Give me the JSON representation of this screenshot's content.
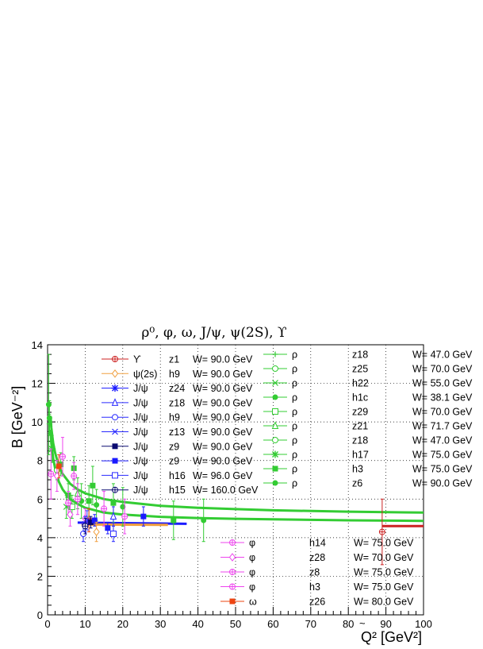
{
  "chart_data": {
    "type": "scatter",
    "title": "ρ⁰, φ, ω, J/ψ, ψ(2S), ϒ",
    "xlabel": "Q²  [GeV²]",
    "ylabel": "B [GeV⁻²]",
    "xlim": [
      0,
      100
    ],
    "ylim": [
      0,
      14
    ],
    "grid": true,
    "x_ticks": [
      "0",
      "10",
      "20",
      "30",
      "40",
      "50",
      "60",
      "70",
      "80",
      "90",
      "100"
    ],
    "y_ticks": [
      "0",
      "2",
      "4",
      "6",
      "8",
      "10",
      "12",
      "14"
    ],
    "x_tick_values": [
      0,
      10,
      20,
      30,
      40,
      50,
      60,
      70,
      80,
      90,
      100
    ],
    "y_tick_values": [
      0,
      2,
      4,
      6,
      8,
      10,
      12,
      14
    ],
    "stray_annotation": "~",
    "legends": [
      {
        "position": "upper-left",
        "entries": [
          {
            "particle": "ϒ",
            "label": "z1",
            "w": "W=  90.0 GeV",
            "color": "#cc2222",
            "marker": "open-circle-cross"
          },
          {
            "particle": "ψ(2s)",
            "label": "h9",
            "w": "W=  90.0 GeV",
            "color": "#f0a040",
            "marker": "open-diamond"
          },
          {
            "particle": "J/ψ",
            "label": "z24",
            "w": "W=  90.0 GeV",
            "color": "#1a1aff",
            "marker": "star"
          },
          {
            "particle": "J/ψ",
            "label": "z18",
            "w": "W=  90.0 GeV",
            "color": "#2a2aff",
            "marker": "open-triangle"
          },
          {
            "particle": "J/ψ",
            "label": "h9",
            "w": "W=  90.0 GeV",
            "color": "#2a2aff",
            "marker": "open-circle"
          },
          {
            "particle": "J/ψ",
            "label": "z13",
            "w": "W=  90.0 GeV",
            "color": "#2a2aff",
            "marker": "x-cross"
          },
          {
            "particle": "J/ψ",
            "label": "z9",
            "w": "W=  90.0 GeV",
            "color": "#0a0a70",
            "marker": "filled-square"
          },
          {
            "particle": "J/ψ",
            "label": "z9",
            "w": "W=  90.0 GeV",
            "color": "#1a1aff",
            "marker": "filled-square"
          },
          {
            "particle": "J/ψ",
            "label": "h16",
            "w": "W=  96.0 GeV",
            "color": "#2a2aff",
            "marker": "open-square"
          },
          {
            "particle": "J/ψ",
            "label": "h15",
            "w": "W= 160.0 GeV",
            "color": "#0a0a70",
            "marker": "open-circle-cross"
          }
        ]
      },
      {
        "position": "upper-right",
        "entries": [
          {
            "particle": "ρ",
            "label": "z18",
            "w": "W=  47.0 GeV",
            "color": "#33cc33",
            "marker": "plus"
          },
          {
            "particle": "ρ",
            "label": "z25",
            "w": "W=  70.0 GeV",
            "color": "#33cc33",
            "marker": "open-circle"
          },
          {
            "particle": "ρ",
            "label": "h22",
            "w": "W=  55.0 GeV",
            "color": "#33cc33",
            "marker": "x-cross"
          },
          {
            "particle": "ρ",
            "label": "h1c",
            "w": "W=  38.1 GeV",
            "color": "#33cc33",
            "marker": "filled-circle"
          },
          {
            "particle": "ρ",
            "label": "z29",
            "w": "W=  70.0 GeV",
            "color": "#33cc33",
            "marker": "open-square"
          },
          {
            "particle": "ρ",
            "label": "z21",
            "w": "W=  71.7 GeV",
            "color": "#33cc33",
            "marker": "open-triangle"
          },
          {
            "particle": "ρ",
            "label": "z18",
            "w": "W=  47.0 GeV",
            "color": "#33cc33",
            "marker": "open-circle"
          },
          {
            "particle": "ρ",
            "label": "h17",
            "w": "W=  75.0 GeV",
            "color": "#33cc33",
            "marker": "star"
          },
          {
            "particle": "ρ",
            "label": "h3",
            "w": "W=  75.0 GeV",
            "color": "#33cc33",
            "marker": "filled-square"
          },
          {
            "particle": "ρ",
            "label": "z6",
            "w": "W=  90.0 GeV",
            "color": "#33cc33",
            "marker": "filled-circle"
          }
        ]
      },
      {
        "position": "lower-center",
        "entries": [
          {
            "particle": "φ",
            "label": "h14",
            "w": "W=  75.0 GeV",
            "color": "#ee44ee",
            "marker": "open-circle-cross"
          },
          {
            "particle": "φ",
            "label": "z28",
            "w": "W=  70.0 GeV",
            "color": "#ee44ee",
            "marker": "open-diamond"
          },
          {
            "particle": "φ",
            "label": "z8",
            "w": "W=  75.0 GeV",
            "color": "#ee44ee",
            "marker": "open-circle-cross"
          },
          {
            "particle": "φ",
            "label": "h3",
            "w": "W=  75.0 GeV",
            "color": "#ee44ee",
            "marker": "open-circle-cross"
          },
          {
            "particle": "ω",
            "label": "z26",
            "w": "W=  80.0 GeV",
            "color": "#ee4411",
            "marker": "filled-square"
          }
        ]
      }
    ],
    "fit_curves": [
      {
        "name": "rho-fit-upper",
        "color": "#33cc33",
        "x": [
          0.8,
          1,
          1.5,
          2,
          3,
          4,
          6,
          8,
          10,
          15,
          20,
          30,
          40,
          50,
          60,
          80,
          100
        ],
        "y": [
          10.3,
          9.7,
          8.9,
          8.4,
          7.7,
          7.3,
          6.8,
          6.5,
          6.3,
          6.0,
          5.85,
          5.65,
          5.55,
          5.48,
          5.42,
          5.35,
          5.3
        ]
      },
      {
        "name": "rho-fit-lower",
        "color": "#33cc33",
        "x": [
          0.8,
          1,
          1.5,
          2,
          3,
          4,
          6,
          8,
          10,
          15,
          20,
          30,
          40,
          50,
          60,
          80,
          100
        ],
        "y": [
          9.6,
          8.9,
          8.1,
          7.6,
          6.9,
          6.5,
          6.0,
          5.75,
          5.55,
          5.3,
          5.2,
          5.08,
          5.02,
          4.98,
          4.95,
          4.9,
          4.87
        ]
      },
      {
        "name": "jpsi-fit",
        "color": "#1a1aff",
        "x": [
          8,
          37
        ],
        "y": [
          4.78,
          4.72
        ]
      },
      {
        "name": "psi2s-fit",
        "color": "#f0a040",
        "x": [
          9,
          32
        ],
        "y": [
          4.68,
          4.66
        ]
      },
      {
        "name": "upsilon-fit",
        "color": "#cc2222",
        "x": [
          89,
          100
        ],
        "y": [
          4.6,
          4.6
        ]
      }
    ],
    "points": [
      {
        "series": "rho z6",
        "color": "#33cc33",
        "marker": "filled-circle",
        "x": 0.3,
        "y": 10.9,
        "err": 2.6
      },
      {
        "series": "rho h1c",
        "color": "#33cc33",
        "marker": "filled-circle",
        "x": 0.5,
        "y": 10.2,
        "err": 0.9
      },
      {
        "series": "rho z18",
        "color": "#33cc33",
        "marker": "plus",
        "x": 0.5,
        "y": 9.9,
        "err": 0.5
      },
      {
        "series": "rho h17",
        "color": "#33cc33",
        "marker": "star",
        "x": 1.2,
        "y": 8.6,
        "err": 0.7
      },
      {
        "series": "rho z25",
        "color": "#33cc33",
        "marker": "open-circle",
        "x": 2.5,
        "y": 7.5,
        "err": 0.5
      },
      {
        "series": "rho h3",
        "color": "#33cc33",
        "marker": "filled-square",
        "x": 3.5,
        "y": 7.8,
        "err": 0.6
      },
      {
        "series": "rho h22",
        "color": "#33cc33",
        "marker": "x-cross",
        "x": 5,
        "y": 5.6,
        "err": 0.6
      },
      {
        "series": "rho h3",
        "color": "#33cc33",
        "marker": "filled-square",
        "x": 5.5,
        "y": 6.2,
        "err": 0.6
      },
      {
        "series": "rho z29",
        "color": "#33cc33",
        "marker": "open-square",
        "x": 6.5,
        "y": 5.6,
        "err": 0.6
      },
      {
        "series": "rho h3",
        "color": "#33cc33",
        "marker": "filled-square",
        "x": 7,
        "y": 7.6,
        "err": 0.6
      },
      {
        "series": "rho z21",
        "color": "#33cc33",
        "marker": "open-triangle",
        "x": 8,
        "y": 6.3,
        "err": 0.8
      },
      {
        "series": "rho h1c",
        "color": "#33cc33",
        "marker": "filled-circle",
        "x": 9,
        "y": 5.9,
        "err": 0.9
      },
      {
        "series": "rho h3",
        "color": "#33cc33",
        "marker": "filled-square",
        "x": 11,
        "y": 5.9,
        "err": 0.8
      },
      {
        "series": "rho h3",
        "color": "#33cc33",
        "marker": "filled-square",
        "x": 12,
        "y": 6.7,
        "err": 1.0
      },
      {
        "series": "rho z6",
        "color": "#33cc33",
        "marker": "filled-circle",
        "x": 13,
        "y": 5.7,
        "err": 0.8
      },
      {
        "series": "rho h3",
        "color": "#33cc33",
        "marker": "filled-square",
        "x": 17.5,
        "y": 5.8,
        "err": 1.0
      },
      {
        "series": "rho z6",
        "color": "#33cc33",
        "marker": "filled-circle",
        "x": 20,
        "y": 5.6,
        "err": 1.0
      },
      {
        "series": "rho h3",
        "color": "#33cc33",
        "marker": "filled-square",
        "x": 33.5,
        "y": 4.9,
        "err": 1.0
      },
      {
        "series": "rho z6",
        "color": "#33cc33",
        "marker": "filled-circle",
        "x": 41.5,
        "y": 4.9,
        "err": 1.1
      },
      {
        "series": "phi h14",
        "color": "#ee44ee",
        "marker": "open-circle-cross",
        "x": 0.9,
        "y": 7.3,
        "err": 1.3
      },
      {
        "series": "phi z28",
        "color": "#ee44ee",
        "marker": "open-diamond",
        "x": 2.5,
        "y": 7.2,
        "err": 0.8
      },
      {
        "series": "phi z8",
        "color": "#ee44ee",
        "marker": "open-circle-cross",
        "x": 4,
        "y": 8.2,
        "err": 1.0
      },
      {
        "series": "phi h3",
        "color": "#ee44ee",
        "marker": "open-circle-cross",
        "x": 5.5,
        "y": 5.8,
        "err": 0.6
      },
      {
        "series": "phi z28",
        "color": "#ee44ee",
        "marker": "open-diamond",
        "x": 6,
        "y": 5.2,
        "err": 0.6
      },
      {
        "series": "phi h3",
        "color": "#ee44ee",
        "marker": "open-circle-cross",
        "x": 7,
        "y": 7.2,
        "err": 0.7
      },
      {
        "series": "phi z8",
        "color": "#ee44ee",
        "marker": "open-circle-cross",
        "x": 8,
        "y": 6.0,
        "err": 0.8
      },
      {
        "series": "phi z28",
        "color": "#ee44ee",
        "marker": "open-diamond",
        "x": 10,
        "y": 5.0,
        "err": 0.5
      },
      {
        "series": "phi h3",
        "color": "#ee44ee",
        "marker": "open-circle-cross",
        "x": 15,
        "y": 5.5,
        "err": 0.9
      },
      {
        "series": "phi z8",
        "color": "#ee44ee",
        "marker": "open-circle-cross",
        "x": 20.5,
        "y": 5.1,
        "err": 0.9
      },
      {
        "series": "omega z26",
        "color": "#ee4411",
        "marker": "filled-square",
        "x": 3,
        "y": 7.7,
        "err": 0.6
      },
      {
        "series": "omega z26",
        "color": "#ee4411",
        "marker": "filled-square",
        "x": 11,
        "y": 4.9,
        "err": 0.6
      },
      {
        "series": "J/psi h9",
        "color": "#2a2aff",
        "marker": "open-circle",
        "x": 9.5,
        "y": 4.2,
        "err": 0.4
      },
      {
        "series": "J/psi z24",
        "color": "#1a1aff",
        "marker": "star",
        "x": 10,
        "y": 4.7,
        "err": 0.4
      },
      {
        "series": "J/psi z13",
        "color": "#2a2aff",
        "marker": "x-cross",
        "x": 10.5,
        "y": 4.9,
        "err": 0.5
      },
      {
        "series": "J/psi z9",
        "color": "#0a0a70",
        "marker": "filled-square",
        "x": 11.5,
        "y": 4.8,
        "err": 0.3
      },
      {
        "series": "J/psi z9",
        "color": "#1a1aff",
        "marker": "filled-square",
        "x": 12.5,
        "y": 4.9,
        "err": 0.3
      },
      {
        "series": "J/psi z9",
        "color": "#1a1aff",
        "marker": "filled-square",
        "x": 16,
        "y": 4.5,
        "err": 0.3
      },
      {
        "series": "J/psi h16",
        "color": "#2a2aff",
        "marker": "open-square",
        "x": 17.5,
        "y": 4.2,
        "err": 0.4
      },
      {
        "series": "J/psi z18",
        "color": "#2a2aff",
        "marker": "open-triangle",
        "x": 17.5,
        "y": 5.1,
        "err": 0.5
      },
      {
        "series": "J/psi z9",
        "color": "#1a1aff",
        "marker": "filled-square",
        "x": 25.5,
        "y": 5.1,
        "err": 0.5
      },
      {
        "series": "J/psi h15",
        "color": "#0a0a70",
        "marker": "open-circle-cross",
        "x": 10,
        "y": 4.6,
        "err": 0.4
      },
      {
        "series": "psi(2s) h9",
        "color": "#f0a040",
        "marker": "open-diamond",
        "x": 13,
        "y": 4.3,
        "err": 0.5
      },
      {
        "series": "Upsilon z1",
        "color": "#cc2222",
        "marker": "open-circle-cross",
        "x": 89,
        "y": 4.3,
        "err": 1.7
      }
    ]
  }
}
